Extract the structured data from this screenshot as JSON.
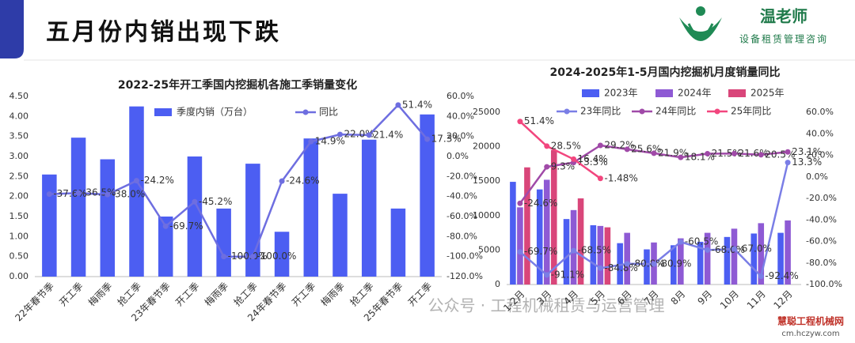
{
  "header": {
    "title": "五月份内销出现下跌",
    "logo_name": "温老师",
    "logo_tagline": "设备租赁管理咨询"
  },
  "chart_data": [
    {
      "type": "bar",
      "title": "2022-25年开工季国内挖掘机各施工季销量变化",
      "categories": [
        "22年春节季",
        "开工季",
        "梅雨季",
        "抢工季",
        "23年春节季",
        "开工季",
        "梅雨季",
        "抢工季",
        "24年春节季",
        "开工季",
        "梅雨季",
        "抢工季",
        "25年春节季",
        "开工季"
      ],
      "series": [
        {
          "name": "季度内销（万台）",
          "type": "bar",
          "color": "#4c5ef2",
          "values": [
            2.55,
            3.47,
            2.93,
            4.25,
            1.5,
            3.0,
            1.7,
            2.82,
            1.12,
            3.45,
            2.07,
            3.42,
            1.7,
            4.05
          ]
        },
        {
          "name": "同比",
          "type": "line",
          "axis": "y2",
          "color": "#6e6ee0",
          "values": [
            -37.6,
            -36.5,
            -38.0,
            -24.2,
            -69.7,
            -45.2,
            -100.0,
            -100.0,
            -24.6,
            14.9,
            22.0,
            21.4,
            51.4,
            17.3
          ],
          "value_labels": [
            "-37.6%",
            "-36.5%",
            "-38.0%",
            "-24.2%",
            "-69.7%",
            "-45.2%",
            "-100.0%",
            "-100.0%",
            "-24.6%",
            "14.9%",
            "22.0%",
            "21.4%",
            "51.4%",
            "17.3%"
          ]
        }
      ],
      "ylim": [
        0,
        4.5
      ],
      "yticks": [
        {
          "value": 0,
          "label": "0.00"
        },
        {
          "value": 0.5,
          "label": "0.50"
        },
        {
          "value": 1,
          "label": "1.00"
        },
        {
          "value": 1.5,
          "label": "1.50"
        },
        {
          "value": 2,
          "label": "2.00"
        },
        {
          "value": 2.5,
          "label": "2.50"
        },
        {
          "value": 3,
          "label": "3.00"
        },
        {
          "value": 3.5,
          "label": "3.50"
        },
        {
          "value": 4,
          "label": "4.00"
        },
        {
          "value": 4.5,
          "label": "4.50"
        }
      ],
      "y2lim": [
        -120,
        60
      ],
      "y2ticks": [
        {
          "value": -120,
          "label": "-120.0%"
        },
        {
          "value": -100,
          "label": "-100.0%"
        },
        {
          "value": -80,
          "label": "-80.0%"
        },
        {
          "value": -60,
          "label": "-60.0%"
        },
        {
          "value": -40,
          "label": "-40.0%"
        },
        {
          "value": -20,
          "label": "-20.0%"
        },
        {
          "value": 0,
          "label": "0.0%"
        },
        {
          "value": 20,
          "label": "20.0%"
        },
        {
          "value": 40,
          "label": "40.0%"
        },
        {
          "value": 60,
          "label": "60.0%"
        }
      ],
      "legend": "top",
      "grid": false
    },
    {
      "type": "bar",
      "title": "2024-2025年1-5月国内挖掘机月度销量同比",
      "categories": [
        "1-2月",
        "3月",
        "4月",
        "5月",
        "6月",
        "7月",
        "8月",
        "9月",
        "10月",
        "11月",
        "12月"
      ],
      "series": [
        {
          "name": "2023年",
          "type": "bar",
          "color": "#4c5ef2",
          "values": [
            14900,
            13800,
            9500,
            8600,
            6000,
            5100,
            5700,
            6200,
            6900,
            7400,
            7500
          ]
        },
        {
          "name": "2024年",
          "type": "bar",
          "color": "#8e5ad4",
          "values": [
            11200,
            15200,
            10800,
            8500,
            7500,
            6100,
            6700,
            7500,
            8100,
            8900,
            9300
          ]
        },
        {
          "name": "2025年",
          "type": "bar",
          "color": "#d9467a",
          "values": [
            17000,
            19500,
            12500,
            8300,
            null,
            null,
            null,
            null,
            null,
            null,
            null
          ]
        },
        {
          "name": "23年同比",
          "type": "line",
          "axis": "y2",
          "color": "#7a7ee6",
          "values": [
            -69.7,
            -91.1,
            -68.5,
            -84.8,
            -80.8,
            -80.9,
            -60.5,
            -68.0,
            -67.0,
            -92.4,
            13.3
          ],
          "value_labels": [
            "-69.7%",
            "-91.1%",
            "-68.5%",
            "-84.8%",
            "-80.8%",
            "-80.9%",
            "-60.5%",
            "-68.0%",
            "-67.0%",
            "-92.4%",
            "13.3%"
          ]
        },
        {
          "name": "24年同比",
          "type": "line",
          "axis": "y2",
          "color": "#a04aa8",
          "values": [
            -24.6,
            9.3,
            13.3,
            29.2,
            25.6,
            21.9,
            18.1,
            21.5,
            21.6,
            20.5,
            23.1
          ],
          "value_labels": [
            "-24.6%",
            "9.3%",
            "13.3%",
            "29.2%",
            "25.6%",
            "21.9%",
            "18.1%",
            "21.5%",
            "21.6%",
            "20.5%",
            "23.1%"
          ]
        },
        {
          "name": "25年同比",
          "type": "line",
          "axis": "y2",
          "color": "#f2467e",
          "values": [
            51.4,
            28.5,
            16.4,
            -1.48,
            null,
            null,
            null,
            null,
            null,
            null,
            null
          ],
          "value_labels": [
            "51.4%",
            "28.5%",
            "16.4%",
            "-1.48%",
            null,
            null,
            null,
            null,
            null,
            null,
            null
          ]
        }
      ],
      "ylim": [
        0,
        25000
      ],
      "yticks": [
        0,
        5000,
        10000,
        15000,
        20000,
        25000
      ],
      "y2lim": [
        -100,
        60
      ],
      "y2ticks": [
        {
          "value": -100,
          "label": "-100.0%"
        },
        {
          "value": -80,
          "label": "-80.0%"
        },
        {
          "value": -60,
          "label": "-60.0%"
        },
        {
          "value": -40,
          "label": "-40.0%"
        },
        {
          "value": -20,
          "label": "-20.0%"
        },
        {
          "value": 0,
          "label": "0.0%"
        },
        {
          "value": 20,
          "label": "20.0%"
        },
        {
          "value": 40,
          "label": "40.0%"
        },
        {
          "value": 60,
          "label": "60.0%"
        }
      ],
      "legend": "top",
      "grid": false
    }
  ],
  "watermark": {
    "text": "公众号 · 工程机械租赁与运营管理",
    "site": "慧聪工程机械网",
    "url": "cm.hczyw.com"
  }
}
